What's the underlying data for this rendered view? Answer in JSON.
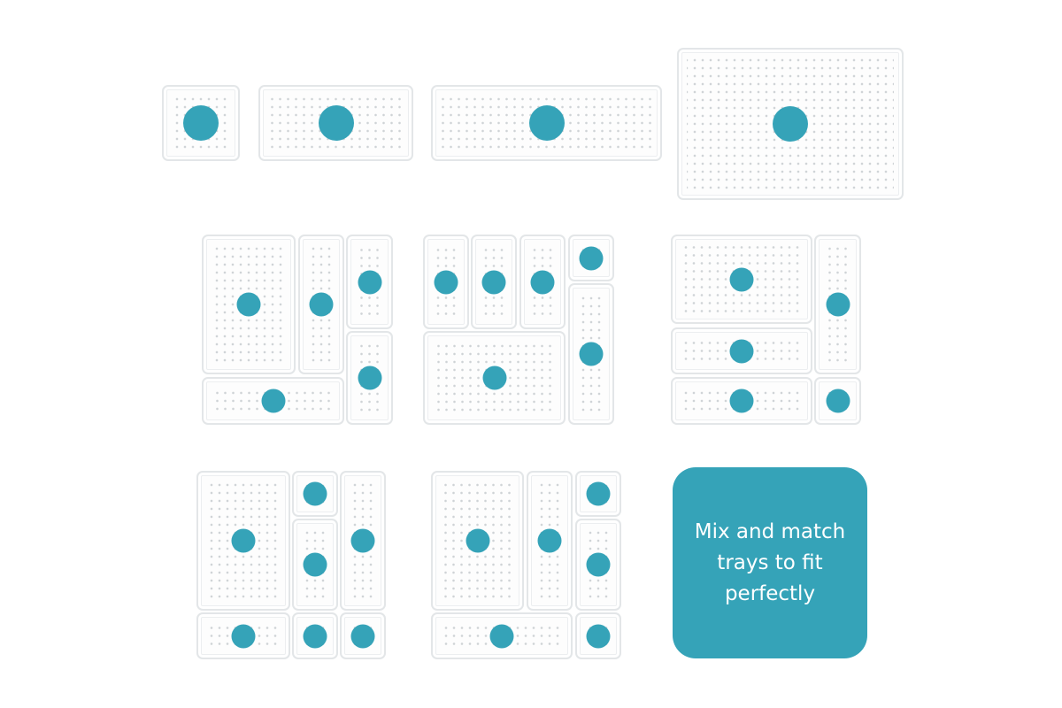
{
  "colors": {
    "accent": "#35a3b8",
    "tray_border": "#e3e6e8",
    "background": "#ffffff"
  },
  "badge": {
    "text": "Mix and match trays to fit perfectly"
  },
  "groups": [
    {
      "name": "individual-tray-sizes",
      "tray_count": 4
    },
    {
      "name": "arrangement-1",
      "tray_count": 5
    },
    {
      "name": "arrangement-2",
      "tray_count": 6
    },
    {
      "name": "arrangement-3",
      "tray_count": 5
    },
    {
      "name": "arrangement-4",
      "tray_count": 7
    },
    {
      "name": "arrangement-5",
      "tray_count": 6
    }
  ]
}
